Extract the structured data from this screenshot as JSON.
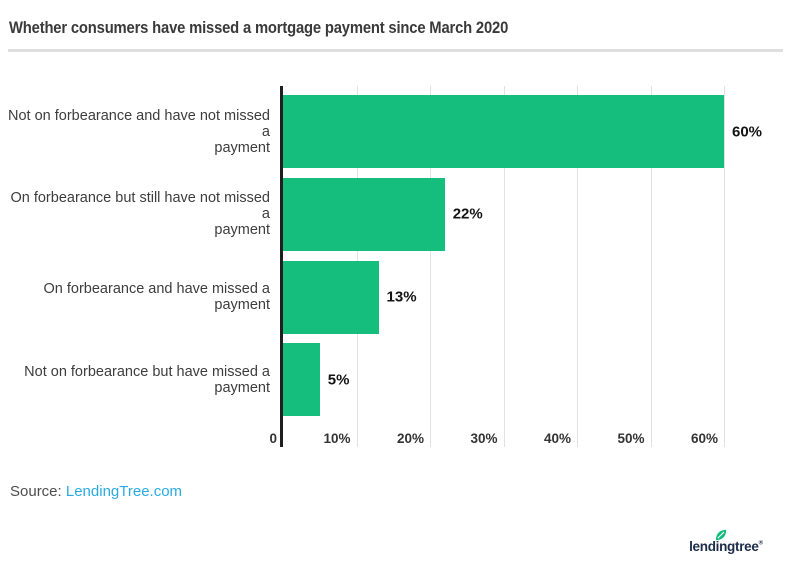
{
  "header": {
    "title": "Whether consumers have missed a mortgage payment since March 2020"
  },
  "chart_data": {
    "type": "bar",
    "orientation": "horizontal",
    "title": "Whether consumers have missed a mortgage payment since March 2020",
    "categories": [
      "Not on forbearance and have not missed a\npayment",
      "On forbearance but still have not missed a\npayment",
      "On forbearance and have missed a\npayment",
      "Not on forbearance but have missed a\npayment"
    ],
    "values": [
      60,
      22,
      13,
      5
    ],
    "value_labels": [
      "60%",
      "22%",
      "13%",
      "5%"
    ],
    "x_tick_values": [
      0,
      10,
      20,
      30,
      40,
      50,
      60
    ],
    "x_tick_labels": [
      "0",
      "10%",
      "20%",
      "30%",
      "40%",
      "50%",
      "60%"
    ],
    "xlim": [
      0,
      62
    ],
    "xlabel": "",
    "ylabel": "",
    "grid": "vertical",
    "legend": "none",
    "bar_color": "#0ebc7a",
    "axis_line_color": "#1f1f1f",
    "gridline_color": "#e1e1e1"
  },
  "footer": {
    "source_label": "Source:",
    "source_link_text": "LendingTree.com",
    "link_color": "#29abe2"
  },
  "branding": {
    "logo_text": "lendingtree",
    "registered_mark": "®",
    "logo_color": "#1b2c49",
    "leaf_color": "#0ebc7a"
  }
}
